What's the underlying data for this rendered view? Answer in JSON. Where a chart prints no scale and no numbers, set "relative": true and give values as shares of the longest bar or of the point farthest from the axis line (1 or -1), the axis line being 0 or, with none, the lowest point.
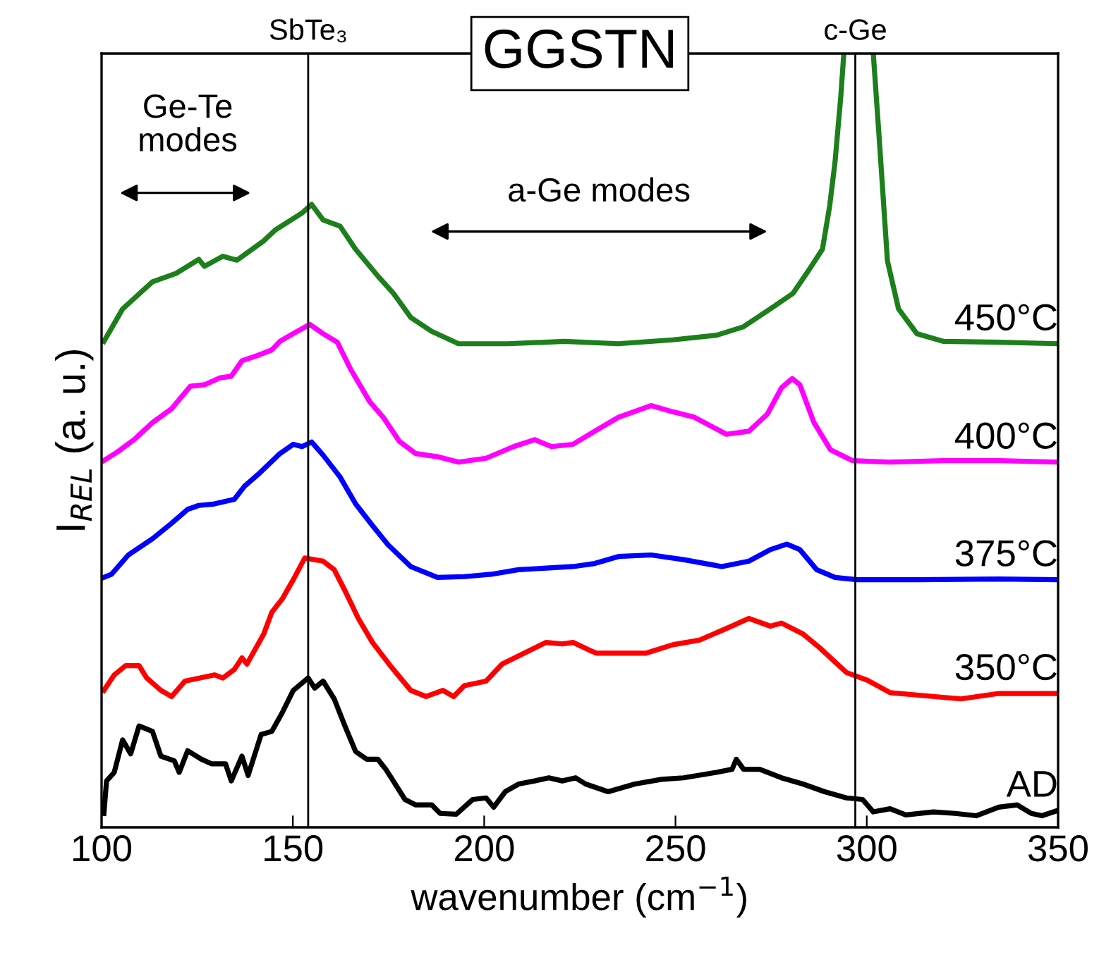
{
  "chart_data": {
    "type": "line",
    "title": "GGSTN",
    "xlabel": "wavenumber (cm$^{−1}$)",
    "ylabel": "I$_{REL}$ (a. u.)",
    "relative": true,
    "xlim": [
      100,
      350
    ],
    "xticks": [
      100,
      150,
      200,
      250,
      300,
      350
    ],
    "tick_labels": "x",
    "grid": false,
    "legend": false,
    "ref_lines": [
      {
        "axis": "x",
        "value": 154,
        "label": "SbTe₃",
        "color": "#000000"
      },
      {
        "axis": "x",
        "value": 297,
        "label": "c-Ge",
        "color": "#000000"
      }
    ],
    "annotations": [
      "Ge-Te modes",
      "a-Ge modes"
    ],
    "series": [
      {
        "name": "AD",
        "color": "#000000",
        "x": [
          100.6,
          101.3,
          103.3,
          105.5,
          107.6,
          109.8,
          113.3,
          115.5,
          119.0,
          120.3,
          122.5,
          126.1,
          128.8,
          132.4,
          133.9,
          136.7,
          138.3,
          141.7,
          144.5,
          147.2,
          150.1,
          154.0,
          155.7,
          157.9,
          160.8,
          163.6,
          166.4,
          169.3,
          172.2,
          174.3,
          179.3,
          182.1,
          186.3,
          188.5,
          192.7,
          197.0,
          200.5,
          202.5,
          205.5,
          209.0,
          213.2,
          216.9,
          220.4,
          223.9,
          226.5,
          232.4,
          239.4,
          246.4,
          252.1,
          260.7,
          264.8,
          265.9,
          267.8,
          272.0,
          277.7,
          283.3,
          289.0,
          294.7,
          298.9,
          301.7,
          306.1,
          310.2,
          317.4,
          323.1,
          328.6,
          334.5,
          339.3,
          343.0,
          345.8,
          350
        ],
        "values": [
          0.018,
          0.06,
          0.071,
          0.113,
          0.095,
          0.131,
          0.124,
          0.092,
          0.086,
          0.071,
          0.099,
          0.088,
          0.082,
          0.082,
          0.06,
          0.092,
          0.067,
          0.12,
          0.124,
          0.148,
          0.177,
          0.193,
          0.18,
          0.189,
          0.166,
          0.131,
          0.098,
          0.088,
          0.088,
          0.075,
          0.036,
          0.029,
          0.029,
          0.018,
          0.017,
          0.036,
          0.038,
          0.026,
          0.046,
          0.056,
          0.06,
          0.064,
          0.06,
          0.064,
          0.056,
          0.046,
          0.056,
          0.062,
          0.064,
          0.071,
          0.075,
          0.088,
          0.075,
          0.075,
          0.064,
          0.056,
          0.046,
          0.038,
          0.036,
          0.02,
          0.024,
          0.016,
          0.02,
          0.018,
          0.015,
          0.026,
          0.029,
          0.018,
          0.015,
          0.022
        ]
      },
      {
        "name": "350°C",
        "color": "#ff0000",
        "x": [
          100.6,
          103.3,
          106.3,
          109.8,
          111.8,
          115.5,
          118.3,
          121.8,
          129.5,
          131.7,
          134.7,
          136.7,
          138.0,
          142.4,
          144.5,
          147.2,
          150.1,
          153.1,
          157.9,
          160.8,
          163.6,
          167.1,
          170.8,
          175.6,
          180.8,
          184.8,
          189.2,
          192.0,
          194.8,
          200.5,
          204.7,
          210.4,
          216.2,
          220.4,
          223.2,
          227.5,
          229.4,
          242.2,
          249.3,
          256.3,
          263.3,
          269.2,
          274.8,
          277.7,
          283.3,
          287.7,
          294.7,
          300.2,
          306.1,
          313.1,
          324.6,
          334.5,
          350
        ],
        "values": [
          0.177,
          0.197,
          0.209,
          0.209,
          0.193,
          0.177,
          0.169,
          0.189,
          0.197,
          0.193,
          0.204,
          0.219,
          0.211,
          0.25,
          0.278,
          0.295,
          0.32,
          0.348,
          0.344,
          0.333,
          0.306,
          0.27,
          0.239,
          0.208,
          0.177,
          0.169,
          0.177,
          0.169,
          0.183,
          0.189,
          0.211,
          0.225,
          0.239,
          0.237,
          0.239,
          0.229,
          0.225,
          0.225,
          0.236,
          0.242,
          0.257,
          0.27,
          0.26,
          0.264,
          0.25,
          0.232,
          0.2,
          0.19,
          0.174,
          0.171,
          0.166,
          0.173,
          0.173
        ]
      },
      {
        "name": "375°C",
        "color": "#0000ff",
        "x": [
          100.6,
          102.6,
          107.0,
          113.3,
          118.3,
          122.5,
          125.4,
          129.5,
          134.7,
          137.4,
          140.9,
          146.6,
          150.1,
          152.4,
          154.9,
          157.9,
          162.3,
          166.4,
          170.8,
          174.9,
          180.8,
          187.8,
          194.8,
          201.8,
          209.0,
          216.2,
          223.2,
          228.9,
          235.1,
          243.6,
          252.1,
          262.1,
          269.2,
          274.8,
          279.1,
          282.5,
          286.9,
          291.7,
          297.5,
          313.1,
          334.5,
          350
        ],
        "values": [
          0.323,
          0.327,
          0.352,
          0.373,
          0.393,
          0.411,
          0.416,
          0.418,
          0.424,
          0.441,
          0.456,
          0.483,
          0.495,
          0.492,
          0.498,
          0.481,
          0.453,
          0.418,
          0.39,
          0.365,
          0.337,
          0.323,
          0.324,
          0.327,
          0.333,
          0.335,
          0.337,
          0.341,
          0.35,
          0.352,
          0.346,
          0.337,
          0.344,
          0.359,
          0.366,
          0.359,
          0.333,
          0.323,
          0.32,
          0.32,
          0.321,
          0.32
        ]
      },
      {
        "name": "400°C",
        "color": "#ff00ff",
        "x": [
          100.6,
          104.1,
          108.5,
          113.3,
          118.3,
          123.2,
          126.9,
          131.0,
          133.9,
          136.7,
          140.9,
          144.5,
          146.6,
          150.1,
          154.4,
          157.9,
          161.6,
          165.1,
          170.1,
          173.6,
          177.8,
          182.1,
          187.8,
          193.3,
          200.5,
          207.7,
          213.2,
          217.6,
          223.2,
          228.9,
          235.1,
          243.6,
          249.3,
          254.9,
          263.3,
          269.2,
          274.0,
          277.7,
          280.5,
          282.5,
          286.2,
          290.5,
          296.2,
          306.1,
          320.1,
          334.5,
          350
        ],
        "values": [
          0.474,
          0.485,
          0.501,
          0.523,
          0.541,
          0.57,
          0.572,
          0.581,
          0.583,
          0.603,
          0.61,
          0.617,
          0.628,
          0.638,
          0.65,
          0.638,
          0.627,
          0.592,
          0.55,
          0.53,
          0.499,
          0.483,
          0.479,
          0.472,
          0.477,
          0.492,
          0.501,
          0.492,
          0.495,
          0.512,
          0.53,
          0.545,
          0.537,
          0.53,
          0.508,
          0.512,
          0.534,
          0.568,
          0.58,
          0.572,
          0.523,
          0.488,
          0.474,
          0.472,
          0.474,
          0.474,
          0.472
        ]
      },
      {
        "name": "450°C",
        "color": "#1c7f1c",
        "x": [
          100.6,
          105.5,
          113.3,
          119.5,
          125.4,
          126.9,
          131.7,
          135.4,
          142.4,
          145.4,
          152.4,
          154.9,
          157.9,
          162.3,
          166.4,
          172.3,
          176.3,
          180.8,
          186.3,
          193.3,
          206.2,
          220.9,
          235.0,
          249.3,
          260.8,
          267.8,
          274.8,
          280.7,
          284.7,
          288.4,
          290.3,
          291.7,
          293.2,
          294.0,
          297.8,
          301.7,
          303.2,
          305.4,
          308.3,
          313.1,
          320.1,
          334.5,
          350
        ],
        "values": [
          0.628,
          0.67,
          0.705,
          0.716,
          0.734,
          0.725,
          0.738,
          0.733,
          0.758,
          0.772,
          0.794,
          0.805,
          0.785,
          0.777,
          0.747,
          0.712,
          0.69,
          0.659,
          0.641,
          0.625,
          0.625,
          0.628,
          0.625,
          0.63,
          0.636,
          0.647,
          0.67,
          0.69,
          0.719,
          0.747,
          0.803,
          0.86,
          0.944,
          1.0,
          null,
          1.0,
          0.894,
          0.732,
          0.67,
          0.638,
          0.628,
          0.627,
          0.625
        ]
      }
    ]
  }
}
